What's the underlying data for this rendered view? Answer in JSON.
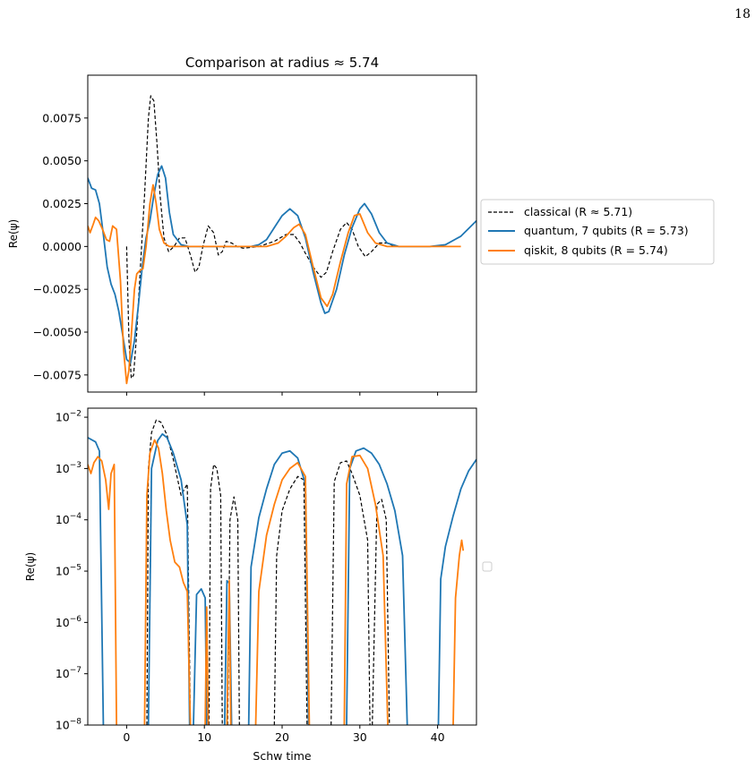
{
  "page_number": "18",
  "chart_data": [
    {
      "type": "line",
      "title": "Comparison at radius ≈ 5.74",
      "xlabel": "",
      "ylabel": "Re(ψ)",
      "xlim": [
        -5,
        45
      ],
      "ylim": [
        -0.0085,
        0.01
      ],
      "x_ticks": [
        0,
        10,
        20,
        30,
        40
      ],
      "x_tick_labels": [],
      "y_ticks": [
        -0.0075,
        -0.005,
        -0.0025,
        0,
        0.0025,
        0.005,
        0.0075
      ],
      "y_tick_labels": [
        "−0.0075",
        "−0.0050",
        "−0.0025",
        "0.0000",
        "0.0025",
        "0.0050",
        "0.0075"
      ],
      "legend": {
        "placement": "outside-right",
        "entries": [
          "classical (R ≈ 5.71)",
          "quantum, 7 qubits (R = 5.73)",
          "qiskit, 8 qubits (R = 5.74)"
        ]
      },
      "series": [
        {
          "name": "classical (R ≈ 5.71)",
          "color": "#000000",
          "style": "dashed",
          "x": [
            0,
            0.3,
            0.6,
            0.9,
            1.3,
            1.8,
            2.3,
            2.8,
            3.1,
            3.5,
            3.9,
            4.3,
            4.8,
            5.4,
            6.1,
            6.8,
            7.5,
            8.2,
            8.8,
            9.3,
            9.8,
            10.5,
            11.2,
            11.8,
            12.3,
            12.8,
            13.5,
            14.2,
            15,
            17,
            19,
            20.5,
            21.5,
            22.3,
            23,
            24,
            25,
            25.7,
            26.5,
            27.5,
            28.3,
            29,
            29.8,
            30.7,
            31.5,
            32.5,
            33.5,
            34.5,
            35.5
          ],
          "y": [
            0,
            -0.0055,
            -0.0077,
            -0.0075,
            -0.005,
            -0.001,
            0.003,
            0.0075,
            0.0088,
            0.0085,
            0.006,
            0.003,
            0.0005,
            -0.0003,
            0,
            0.0005,
            0.0005,
            -0.0005,
            -0.0015,
            -0.0012,
            0,
            0.0012,
            0.0008,
            -0.0005,
            -0.0003,
            0.0003,
            0.0002,
            0,
            -0.0001,
            0,
            0.0003,
            0.0007,
            0.0007,
            0.0002,
            -0.0004,
            -0.0012,
            -0.0018,
            -0.0015,
            -0.0003,
            0.001,
            0.0014,
            0.001,
            0,
            -0.0006,
            -0.0003,
            0.0002,
            0.0002,
            0,
            0
          ]
        },
        {
          "name": "quantum, 7 qubits (R = 5.73)",
          "color": "#1f77b4",
          "style": "solid",
          "x": [
            -5,
            -4.5,
            -4,
            -3.5,
            -3,
            -2.5,
            -2,
            -1.5,
            -1,
            -0.5,
            0,
            0.5,
            1,
            1.5,
            2,
            2.5,
            3,
            3.5,
            4,
            4.5,
            5,
            5.5,
            6,
            7,
            8,
            10,
            13,
            16,
            17,
            18,
            19,
            20,
            21,
            22,
            23,
            24,
            25,
            25.5,
            26,
            27,
            28,
            29,
            30,
            30.6,
            31.5,
            32.5,
            33.5,
            35,
            37,
            39,
            41,
            43,
            45
          ],
          "y": [
            0.004,
            0.0034,
            0.0033,
            0.0025,
            0.0007,
            -0.0012,
            -0.0022,
            -0.0028,
            -0.0038,
            -0.0052,
            -0.0066,
            -0.0068,
            -0.0055,
            -0.0035,
            -0.0012,
            0.0005,
            0.0015,
            0.003,
            0.0042,
            0.0047,
            0.004,
            0.002,
            0.0007,
            0.0001,
            0,
            0,
            0,
            0,
            0.0001,
            0.0004,
            0.0011,
            0.0018,
            0.0022,
            0.0018,
            0.0005,
            -0.0015,
            -0.0033,
            -0.0039,
            -0.0038,
            -0.0025,
            -0.0005,
            0.0011,
            0.0022,
            0.0025,
            0.0019,
            0.0008,
            0.0002,
            0,
            0,
            0,
            0.0001,
            0.0006,
            0.0015
          ]
        },
        {
          "name": "qiskit, 8 qubits (R = 5.74)",
          "color": "#ff7f0e",
          "style": "solid",
          "x": [
            -5,
            -4.7,
            -4.3,
            -4,
            -3.6,
            -3.1,
            -2.6,
            -2.2,
            -1.8,
            -1.3,
            -0.8,
            -0.4,
            0,
            0.3,
            0.7,
            1,
            1.3,
            1.7,
            2.1,
            2.5,
            3,
            3.4,
            3.8,
            4.2,
            4.8,
            5.5,
            6.5,
            8,
            10,
            14,
            18,
            19.5,
            20.5,
            21.5,
            22.2,
            23,
            24,
            25,
            25.8,
            26.5,
            27.5,
            28.5,
            29.3,
            30,
            31,
            32,
            33.5,
            36,
            40,
            43
          ],
          "y": [
            0.0012,
            0.0008,
            0.0013,
            0.0017,
            0.0015,
            0.001,
            0.0004,
            0.0003,
            0.0012,
            0.001,
            -0.002,
            -0.006,
            -0.008,
            -0.0072,
            -0.0045,
            -0.0025,
            -0.0016,
            -0.0014,
            -0.0013,
            0,
            0.0025,
            0.0036,
            0.0025,
            0.001,
            0.0002,
            0,
            0,
            0,
            0,
            0,
            0,
            0.0002,
            0.0006,
            0.0011,
            0.0013,
            0.0007,
            -0.0012,
            -0.003,
            -0.0035,
            -0.0028,
            -0.0009,
            0.0008,
            0.0018,
            0.0019,
            0.0008,
            0.0002,
            0,
            0,
            0,
            0
          ]
        }
      ]
    },
    {
      "type": "line",
      "title": "",
      "xlabel": "Schw time",
      "ylabel": "Re(ψ)",
      "y_scale": "log",
      "xlim": [
        -5,
        45
      ],
      "ylim": [
        1e-08,
        0.015
      ],
      "x_ticks": [
        0,
        10,
        20,
        30,
        40
      ],
      "x_tick_labels": [
        "0",
        "10",
        "20",
        "30",
        "40"
      ],
      "y_tick_exponents": [
        -8,
        -7,
        -6,
        -5,
        -4,
        -3,
        -2
      ],
      "y_tick_base": "10",
      "legend": {
        "placement": "outside-right",
        "entries": []
      },
      "series": [
        {
          "name": "classical (R ≈ 5.71)",
          "color": "#000000",
          "style": "dashed",
          "segments": [
            {
              "x": [
                2.6,
                2.8,
                3.2,
                3.8,
                4.4,
                5.2,
                6,
                7,
                7.8,
                8.2
              ],
              "y": [
                1e-08,
                0.001,
                0.005,
                0.0088,
                0.008,
                0.0045,
                0.0015,
                0.0003,
                0.0005,
                1e-08
              ]
            },
            {
              "x": [
                10.6,
                10.8,
                11.2,
                11.6,
                12.1,
                12.3
              ],
              "y": [
                1e-08,
                0.0004,
                0.0012,
                0.001,
                0.0003,
                1e-08
              ]
            },
            {
              "x": [
                13,
                13.3,
                13.8,
                14.3,
                14.5
              ],
              "y": [
                1e-08,
                0.0001,
                0.00028,
                0.0001,
                1e-08
              ]
            },
            {
              "x": [
                19,
                19.3,
                20,
                21,
                22,
                22.8,
                23.2
              ],
              "y": [
                1e-08,
                2e-05,
                0.00015,
                0.0004,
                0.0007,
                0.0006,
                1e-08
              ]
            },
            {
              "x": [
                26.3,
                26.7,
                27.5,
                28.3,
                29,
                30,
                31,
                31.3
              ],
              "y": [
                1e-08,
                0.00055,
                0.0013,
                0.0014,
                0.0008,
                0.0003,
                4e-05,
                1e-08
              ]
            },
            {
              "x": [
                31.6,
                32.2,
                32.8,
                33.4,
                33.8
              ],
              "y": [
                1e-08,
                0.0002,
                0.00025,
                0.0001,
                1e-08
              ]
            }
          ]
        },
        {
          "name": "quantum, 7 qubits (R = 5.73)",
          "color": "#1f77b4",
          "style": "solid",
          "segments": [
            {
              "x": [
                -5,
                -4,
                -3.5,
                -3
              ],
              "y": [
                0.004,
                0.0033,
                0.0022,
                1e-08
              ]
            },
            {
              "x": [
                2.8,
                3.2,
                4,
                4.6,
                5.2,
                6,
                7,
                7.8,
                8.1
              ],
              "y": [
                1e-08,
                0.001,
                0.0035,
                0.0047,
                0.004,
                0.002,
                0.0006,
                8e-05,
                1e-08
              ]
            },
            {
              "x": [
                8.6,
                9,
                9.6,
                10.1,
                10.3
              ],
              "y": [
                1e-08,
                3.5e-06,
                4.5e-06,
                3e-06,
                1e-08
              ]
            },
            {
              "x": [
                12.6,
                12.9,
                13.2,
                13.5
              ],
              "y": [
                1e-08,
                6.5e-06,
                5.8e-06,
                1e-08
              ]
            },
            {
              "x": [
                15.7,
                16,
                17,
                18,
                19,
                20,
                21,
                22,
                23,
                23.4
              ],
              "y": [
                1e-08,
                1.2e-05,
                0.00011,
                0.0004,
                0.0012,
                0.002,
                0.0022,
                0.0016,
                0.0005,
                1e-08
              ]
            },
            {
              "x": [
                28.3,
                28.7,
                29.5,
                30.5,
                31.5,
                32.5,
                33.5,
                34.5,
                35.5,
                36.1
              ],
              "y": [
                1e-08,
                0.001,
                0.0022,
                0.0025,
                0.002,
                0.0012,
                0.0005,
                0.00015,
                2e-05,
                1e-08
              ]
            },
            {
              "x": [
                40.1,
                40.4,
                41,
                42,
                43,
                44,
                45
              ],
              "y": [
                1e-08,
                7e-06,
                3e-05,
                0.00012,
                0.0004,
                0.0009,
                0.0015
              ]
            }
          ]
        },
        {
          "name": "qiskit, 8 qubits (R = 5.74)",
          "color": "#ff7f0e",
          "style": "solid",
          "segments": [
            {
              "x": [
                -5,
                -4.6,
                -4.2,
                -3.7,
                -3.2,
                -2.7,
                -2.3,
                -2,
                -1.6,
                -1.3
              ],
              "y": [
                0.0012,
                0.0008,
                0.0013,
                0.0017,
                0.0014,
                0.0006,
                0.00016,
                0.0008,
                0.0012,
                1e-08
              ]
            },
            {
              "x": [
                2.3,
                2.6,
                3,
                3.6,
                4.1,
                4.6,
                5.1,
                5.6,
                6.2,
                6.8,
                7.3,
                7.8,
                8.2
              ],
              "y": [
                1e-08,
                0.0003,
                0.002,
                0.0036,
                0.0025,
                0.0008,
                0.00015,
                4e-05,
                1.5e-05,
                1.2e-05,
                6e-06,
                4e-06,
                1e-08
              ]
            },
            {
              "x": [
                10.1,
                10.3,
                10.5
              ],
              "y": [
                1e-08,
                2e-06,
                1e-08
              ]
            },
            {
              "x": [
                12.9,
                13.2,
                13.4
              ],
              "y": [
                1e-08,
                6.5e-06,
                1e-08
              ]
            },
            {
              "x": [
                16.6,
                17,
                18,
                19,
                20,
                21,
                22,
                23,
                23.5
              ],
              "y": [
                1e-08,
                4e-06,
                5e-05,
                0.0002,
                0.0006,
                0.001,
                0.0013,
                0.0007,
                1e-08
              ]
            },
            {
              "x": [
                28,
                28.3,
                29,
                30,
                31,
                32,
                33,
                33.6
              ],
              "y": [
                1e-08,
                0.0005,
                0.0017,
                0.0018,
                0.001,
                0.0002,
                2e-05,
                1e-08
              ]
            },
            {
              "x": [
                42,
                42.3,
                42.8,
                43.1,
                43.3
              ],
              "y": [
                1e-08,
                3e-06,
                2e-05,
                4e-05,
                2.5e-05
              ]
            }
          ]
        }
      ]
    }
  ]
}
